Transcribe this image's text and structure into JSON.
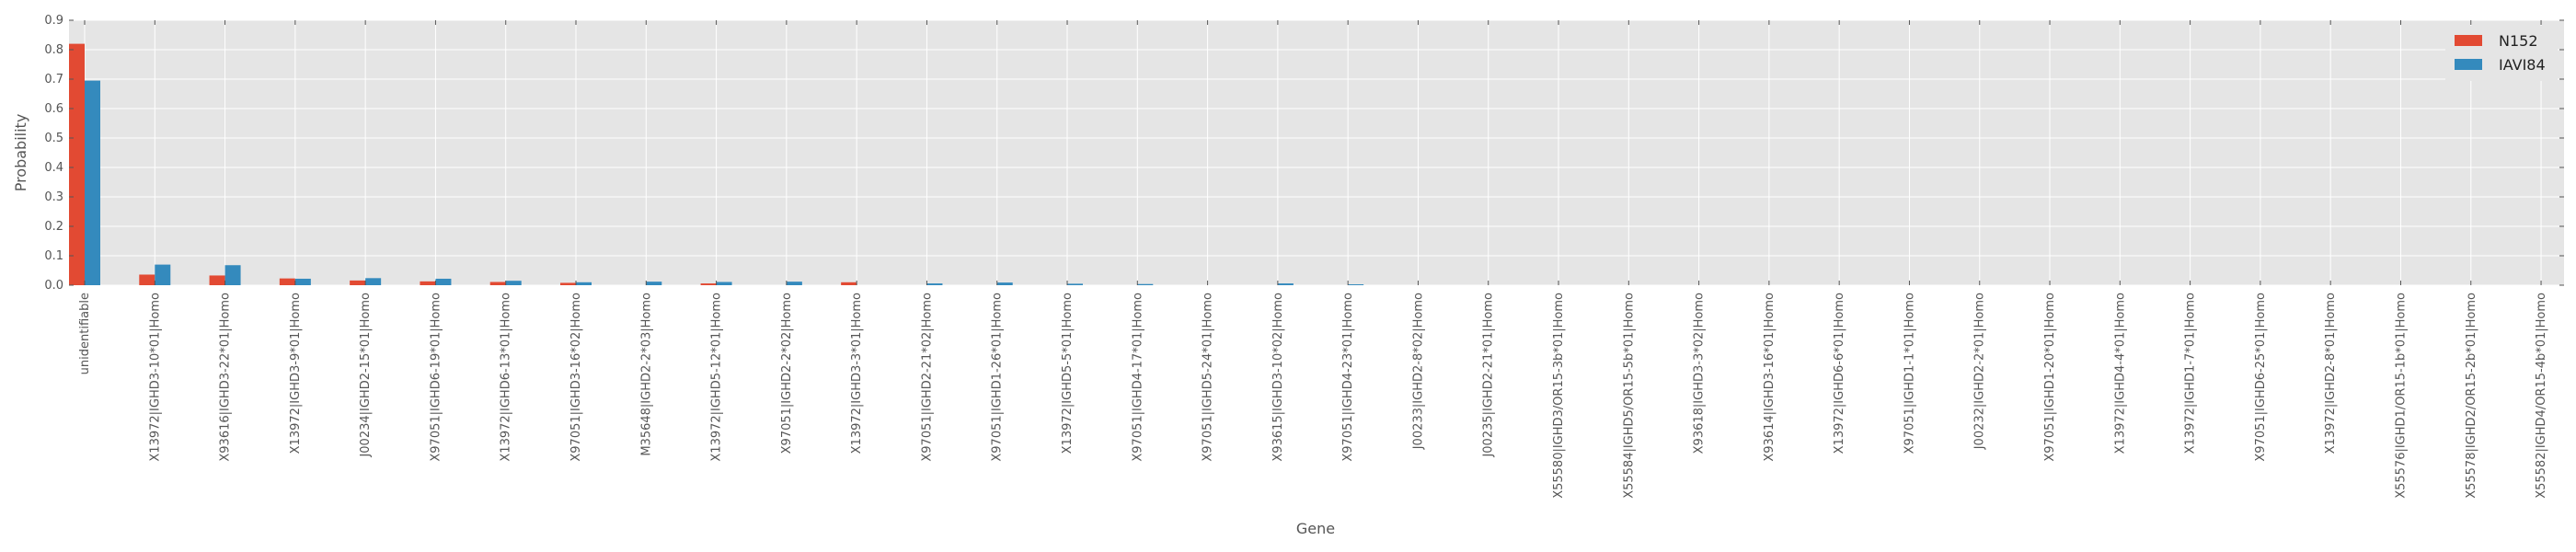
{
  "chart_data": {
    "type": "bar",
    "title": "",
    "xlabel": "Gene",
    "ylabel": "Probability",
    "ylim": [
      0,
      0.9
    ],
    "yticks": [
      "0.0",
      "0.1",
      "0.2",
      "0.3",
      "0.4",
      "0.5",
      "0.6",
      "0.7",
      "0.8",
      "0.9"
    ],
    "grid": true,
    "legend_position": "top-right",
    "categories": [
      "unidentifiable",
      "X13972|IGHD3-10*01|Homo",
      "X93616|IGHD3-22*01|Homo",
      "X13972|IGHD3-9*01|Homo",
      "J00234|IGHD2-15*01|Homo",
      "X97051|IGHD6-19*01|Homo",
      "X13972|IGHD6-13*01|Homo",
      "X97051|IGHD3-16*02|Homo",
      "M35648|IGHD2-2*03|Homo",
      "X13972|IGHD5-12*01|Homo",
      "X97051|IGHD2-2*02|Homo",
      "X13972|IGHD3-3*01|Homo",
      "X97051|IGHD2-21*02|Homo",
      "X97051|IGHD1-26*01|Homo",
      "X13972|IGHD5-5*01|Homo",
      "X97051|IGHD4-17*01|Homo",
      "X97051|IGHD5-24*01|Homo",
      "X93615|IGHD3-10*02|Homo",
      "X97051|IGHD4-23*01|Homo",
      "J00233|IGHD2-8*02|Homo",
      "J00235|IGHD2-21*01|Homo",
      "X55580|IGHD3/OR15-3b*01|Homo",
      "X55584|IGHD5/OR15-5b*01|Homo",
      "X93618|IGHD3-3*02|Homo",
      "X93614|IGHD3-16*01|Homo",
      "X13972|IGHD6-6*01|Homo",
      "X97051|IGHD1-1*01|Homo",
      "J00232|IGHD2-2*01|Homo",
      "X97051|IGHD1-20*01|Homo",
      "X13972|IGHD4-4*01|Homo",
      "X13972|IGHD1-7*01|Homo",
      "X97051|IGHD6-25*01|Homo",
      "X13972|IGHD2-8*01|Homo",
      "X55576|IGHD1/OR15-1b*01|Homo",
      "X55578|IGHD2/OR15-2b*01|Homo",
      "X55582|IGHD4/OR15-4b*01|Homo"
    ],
    "series": [
      {
        "name": "N152",
        "color": "#E24A33",
        "values": [
          0.82,
          0.036,
          0.033,
          0.023,
          0.016,
          0.013,
          0.011,
          0.008,
          0.0,
          0.006,
          0.0,
          0.01,
          0.0,
          0.0,
          0.0,
          0.0,
          0.0,
          0.0,
          0.0,
          0.0,
          0.0,
          0.0,
          0.0,
          0.0,
          0.0,
          0.0,
          0.0,
          0.0,
          0.0,
          0.0,
          0.0,
          0.0,
          0.0,
          0.0,
          0.0,
          0.0
        ]
      },
      {
        "name": "IAVI84",
        "color": "#348ABD",
        "values": [
          0.695,
          0.07,
          0.068,
          0.022,
          0.024,
          0.022,
          0.015,
          0.01,
          0.012,
          0.011,
          0.012,
          0.0,
          0.006,
          0.009,
          0.005,
          0.004,
          0.0,
          0.006,
          0.003,
          0.0,
          0.0,
          0.0,
          0.0,
          0.0,
          0.0,
          0.0,
          0.0,
          0.0,
          0.0,
          0.0,
          0.0,
          0.0,
          0.0,
          0.0,
          0.0,
          0.0
        ]
      }
    ]
  }
}
